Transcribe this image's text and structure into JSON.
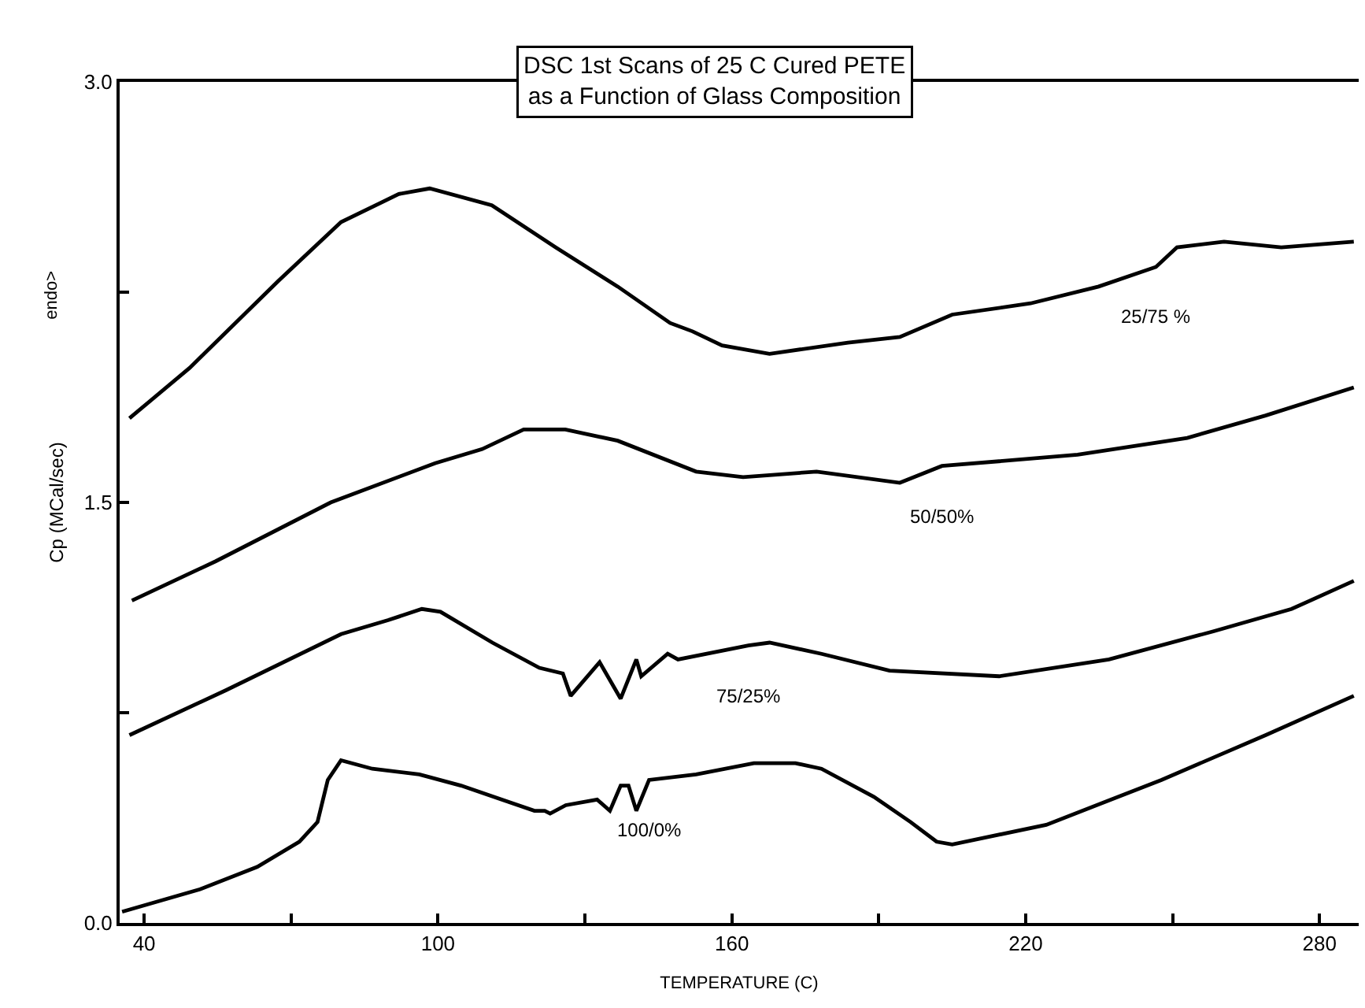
{
  "chart_data": {
    "type": "line",
    "title": "DSC 1st Scans of 25 C Cured PETE\nas a Function of Glass Composition",
    "xlabel": "TEMPERATURE (C)",
    "ylabel": "Cp (MCal/sec)",
    "xlim": [
      35,
      288
    ],
    "ylim": [
      0,
      3
    ],
    "xticks": [
      40,
      {
        "value": 70,
        "label": null
      },
      100,
      {
        "value": 130,
        "label": null
      },
      160,
      {
        "value": 190,
        "label": null
      },
      220,
      {
        "value": 250,
        "label": null
      },
      280
    ],
    "yticks": [
      {
        "value": 0,
        "label": "0.0"
      },
      {
        "value": 0.75,
        "label": null
      },
      {
        "value": 1.5,
        "label": "1.5"
      },
      {
        "value": 2.25,
        "label": null
      },
      {
        "value": 3,
        "label": "3.0"
      }
    ],
    "grid": false,
    "legend": false,
    "marker": "none",
    "line_style": "solid",
    "annotations": [
      "endo>"
    ],
    "series": [
      {
        "name": "25/75 %",
        "color": "#000000",
        "x": [
          37,
          49.3,
          67.4,
          80.2,
          92,
          98.3,
          111,
          124,
          136.7,
          147.4,
          152,
          158,
          167.7,
          183.7,
          194.3,
          205,
          221,
          234.9,
          246.6,
          250.9,
          260.5,
          272.2,
          287
        ],
        "values": [
          1.8,
          1.98,
          2.29,
          2.5,
          2.6,
          2.62,
          2.56,
          2.41,
          2.27,
          2.14,
          2.11,
          2.06,
          2.03,
          2.07,
          2.09,
          2.17,
          2.21,
          2.27,
          2.34,
          2.41,
          2.43,
          2.41,
          2.43
        ]
      },
      {
        "name": "50/50%",
        "color": "#000000",
        "x": [
          37.5,
          54.6,
          78.1,
          99.4,
          109,
          117.5,
          126,
          136.7,
          152.7,
          162.3,
          177.3,
          194.3,
          202.9,
          230.6,
          253,
          269,
          287
        ],
        "values": [
          1.15,
          1.29,
          1.5,
          1.64,
          1.69,
          1.76,
          1.76,
          1.72,
          1.61,
          1.59,
          1.61,
          1.57,
          1.63,
          1.67,
          1.73,
          1.81,
          1.91
        ]
      },
      {
        "name": "75/25%",
        "color": "#000000",
        "x": [
          37,
          56.7,
          80.2,
          89.8,
          96.7,
          100.5,
          111.1,
          120.7,
          125.5,
          127.1,
          133,
          137.3,
          140.5,
          141.5,
          146.9,
          149,
          163.4,
          167.7,
          178.3,
          192.2,
          214.6,
          237,
          258.3,
          274.3,
          287
        ],
        "values": [
          0.67,
          0.83,
          1.03,
          1.08,
          1.12,
          1.11,
          1,
          0.91,
          0.89,
          0.81,
          0.93,
          0.8,
          0.94,
          0.88,
          0.96,
          0.94,
          0.99,
          1,
          0.96,
          0.9,
          0.88,
          0.94,
          1.04,
          1.12,
          1.22
        ]
      },
      {
        "name": "100/0%",
        "color": "#000000",
        "x": [
          35.5,
          51.4,
          63.1,
          71.7,
          75.4,
          77.5,
          80.2,
          86.6,
          96.2,
          104.7,
          119.7,
          121.8,
          122.9,
          126.1,
          132.5,
          135.1,
          137.3,
          138.9,
          140.5,
          143.1,
          152.7,
          164.5,
          173,
          178.3,
          189,
          196.5,
          201.8,
          205,
          224.2,
          247.7,
          269,
          287
        ],
        "values": [
          0.04,
          0.12,
          0.2,
          0.29,
          0.36,
          0.51,
          0.58,
          0.55,
          0.53,
          0.49,
          0.4,
          0.4,
          0.39,
          0.42,
          0.44,
          0.4,
          0.49,
          0.49,
          0.4,
          0.51,
          0.53,
          0.57,
          0.57,
          0.55,
          0.45,
          0.36,
          0.29,
          0.28,
          0.35,
          0.51,
          0.67,
          0.81
        ]
      }
    ]
  }
}
